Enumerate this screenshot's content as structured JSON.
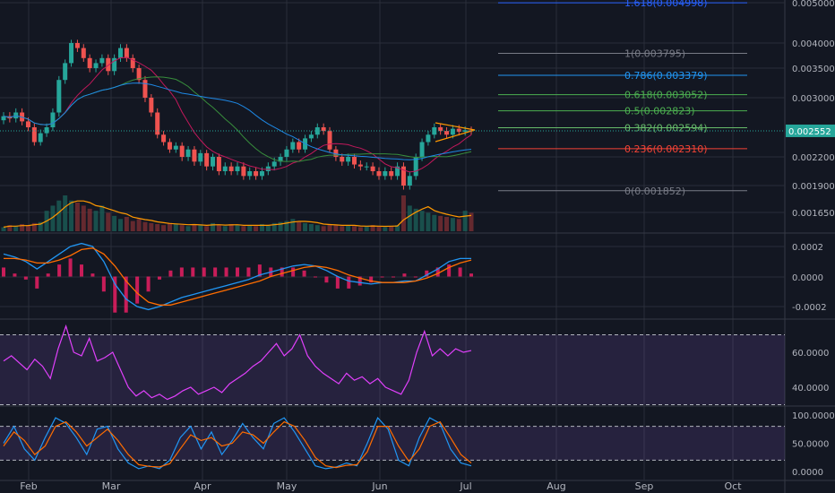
{
  "colors": {
    "bg": "#131722",
    "grid": "#2a2e39",
    "axis_text": "#b2b5be",
    "candle_up": "#26a69a",
    "candle_down": "#ef5350",
    "last_price_bg": "#26a69a",
    "macd": "#2196f3",
    "signal": "#ff6d00",
    "hist": "#e91e63",
    "rsi": "#e040fb",
    "rsi_band": "#7e57c2",
    "stoch_k": "#2196f3",
    "stoch_d": "#ff6d00"
  },
  "chart_data": [
    {
      "type": "candlestick",
      "panel": "price",
      "x_labels": [
        "Feb",
        "Mar",
        "Apr",
        "May",
        "Jun",
        "Jul",
        "Aug",
        "Sep",
        "Oct"
      ],
      "y_ticks": [
        "0.005000",
        "0.004000",
        "0.003500",
        "0.003000",
        "0.002200",
        "0.001900",
        "0.001650"
      ],
      "y_tick_values": [
        0.005,
        0.004,
        0.0035,
        0.003,
        0.0022,
        0.0019,
        0.00165
      ],
      "last_price_label": "0.002552",
      "last_price": 0.002552,
      "fibonacci": [
        {
          "label": "1.618(0.004998)",
          "value": 0.004998,
          "color": "#2962ff"
        },
        {
          "label": "1(0.003795)",
          "value": 0.003795,
          "color": "#787b86"
        },
        {
          "label": "0.786(0.003379)",
          "value": 0.003379,
          "color": "#2196f3"
        },
        {
          "label": "0.618(0.003052)",
          "value": 0.003052,
          "color": "#4caf50"
        },
        {
          "label": "0.5(0.002823)",
          "value": 0.002823,
          "color": "#4caf50"
        },
        {
          "label": "0.382(0.002594)",
          "value": 0.002594,
          "color": "#66bb6a"
        },
        {
          "label": "0.236(0.002310)",
          "value": 0.00231,
          "color": "#f44336"
        },
        {
          "label": "0(0.001852)",
          "value": 0.001852,
          "color": "#787b86"
        }
      ],
      "close_series": [
        0.00275,
        0.00272,
        0.0028,
        0.00268,
        0.0026,
        0.0024,
        0.00252,
        0.0026,
        0.0028,
        0.0033,
        0.0036,
        0.004,
        0.0039,
        0.0037,
        0.0035,
        0.0036,
        0.0037,
        0.00345,
        0.0037,
        0.0039,
        0.0037,
        0.0035,
        0.0033,
        0.003,
        0.0028,
        0.0025,
        0.0024,
        0.0023,
        0.00235,
        0.0022,
        0.0023,
        0.00215,
        0.00225,
        0.0021,
        0.0022,
        0.00205,
        0.0021,
        0.00205,
        0.0021,
        0.002,
        0.00205,
        0.002,
        0.00205,
        0.0021,
        0.00215,
        0.0022,
        0.0023,
        0.0024,
        0.0023,
        0.00245,
        0.0025,
        0.0026,
        0.00255,
        0.0023,
        0.0022,
        0.00215,
        0.0022,
        0.00212,
        0.0021,
        0.0021,
        0.00205,
        0.002,
        0.00205,
        0.002,
        0.0021,
        0.0019,
        0.002,
        0.0022,
        0.0024,
        0.0025,
        0.0026,
        0.00255,
        0.0025,
        0.00258,
        0.00254,
        0.00256,
        0.00255
      ],
      "volume_series": [
        4,
        6,
        5,
        7,
        6,
        8,
        9,
        20,
        25,
        30,
        35,
        30,
        28,
        25,
        22,
        20,
        25,
        18,
        15,
        12,
        14,
        10,
        12,
        9,
        8,
        7,
        6,
        8,
        7,
        6,
        5,
        7,
        6,
        5,
        8,
        6,
        5,
        7,
        6,
        5,
        6,
        5,
        7,
        6,
        8,
        9,
        10,
        12,
        9,
        8,
        7,
        6,
        5,
        7,
        6,
        5,
        6,
        5,
        4,
        5,
        6,
        5,
        4,
        5,
        6,
        35,
        25,
        22,
        20,
        18,
        16,
        15,
        14,
        13,
        12,
        20,
        18
      ]
    },
    {
      "type": "line",
      "panel": "macd",
      "y_ticks": [
        "0.0002",
        "0.0000",
        "-0.0002"
      ],
      "y_tick_values": [
        0.0002,
        0,
        -0.0002
      ],
      "series": [
        {
          "values": [
            0.00015,
            0.00013,
            0.0001,
            5e-05,
            0.0001,
            0.00015,
            0.0002,
            0.00022,
            0.0002,
            0.0001,
            -5e-05,
            -0.00015,
            -0.0002,
            -0.00022,
            -0.0002,
            -0.00017,
            -0.00014,
            -0.00012,
            -0.0001,
            -8e-05,
            -6e-05,
            -4e-05,
            -2e-05,
            1e-05,
            3e-05,
            5e-05,
            7e-05,
            8e-05,
            7e-05,
            4e-05,
            0.0,
            -3e-05,
            -4e-05,
            -5e-05,
            -4e-05,
            -4e-05,
            -3e-05,
            -3e-05,
            1e-05,
            5e-05,
            0.0001,
            0.00012,
            0.00012
          ]
        },
        {
          "values": [
            0.00012,
            0.00012,
            0.00011,
            9e-05,
            9e-05,
            0.00011,
            0.00014,
            0.00018,
            0.00019,
            0.00015,
            7e-05,
            -3e-05,
            -0.00011,
            -0.00017,
            -0.00019,
            -0.00019,
            -0.00017,
            -0.00015,
            -0.00013,
            -0.00011,
            -9e-05,
            -7e-05,
            -5e-05,
            -3e-05,
            0.0,
            2e-05,
            4e-05,
            6e-05,
            7e-05,
            6e-05,
            4e-05,
            1e-05,
            -1e-05,
            -3e-05,
            -4e-05,
            -4e-05,
            -4e-05,
            -3e-05,
            -1e-05,
            2e-05,
            6e-05,
            9e-05,
            0.00011
          ]
        }
      ]
    },
    {
      "type": "line",
      "panel": "rsi",
      "y_ticks": [
        "60.0000",
        "40.0000"
      ],
      "y_tick_values": [
        60,
        40
      ],
      "band": [
        30,
        70
      ],
      "series": [
        {
          "values": [
            55,
            58,
            54,
            50,
            56,
            52,
            45,
            62,
            75,
            60,
            58,
            68,
            55,
            57,
            60,
            50,
            40,
            35,
            38,
            34,
            36,
            33,
            35,
            38,
            40,
            36,
            38,
            40,
            37,
            42,
            45,
            48,
            52,
            55,
            60,
            65,
            58,
            62,
            70,
            58,
            52,
            48,
            45,
            42,
            48,
            44,
            46,
            42,
            45,
            40,
            38,
            36,
            44,
            60,
            72,
            58,
            62,
            58,
            62,
            60,
            61
          ]
        }
      ]
    },
    {
      "type": "line",
      "panel": "stoch",
      "y_ticks": [
        "100.0000",
        "50.0000",
        "0.0000"
      ],
      "y_tick_values": [
        100,
        50,
        0
      ],
      "band": [
        20,
        80
      ],
      "series": [
        {
          "values": [
            50,
            80,
            40,
            20,
            60,
            95,
            85,
            60,
            30,
            75,
            80,
            40,
            15,
            5,
            10,
            5,
            20,
            60,
            80,
            40,
            70,
            30,
            55,
            85,
            60,
            40,
            85,
            95,
            70,
            40,
            10,
            5,
            8,
            15,
            10,
            50,
            95,
            75,
            20,
            10,
            60,
            95,
            85,
            40,
            15,
            10
          ]
        },
        {
          "values": [
            45,
            70,
            55,
            30,
            45,
            80,
            88,
            70,
            45,
            60,
            75,
            55,
            30,
            12,
            9,
            8,
            14,
            40,
            65,
            55,
            60,
            45,
            50,
            70,
            65,
            50,
            70,
            88,
            80,
            55,
            25,
            10,
            7,
            11,
            12,
            35,
            80,
            80,
            45,
            18,
            40,
            80,
            88,
            60,
            30,
            15
          ]
        }
      ]
    }
  ]
}
